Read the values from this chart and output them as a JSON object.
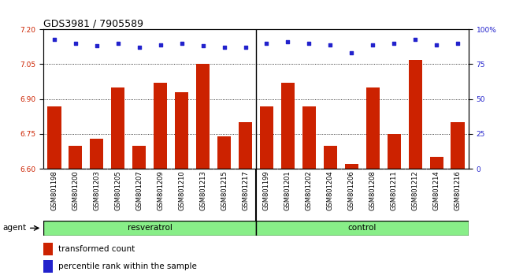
{
  "title": "GDS3981 / 7905589",
  "samples": [
    "GSM801198",
    "GSM801200",
    "GSM801203",
    "GSM801205",
    "GSM801207",
    "GSM801209",
    "GSM801210",
    "GSM801213",
    "GSM801215",
    "GSM801217",
    "GSM801199",
    "GSM801201",
    "GSM801202",
    "GSM801204",
    "GSM801206",
    "GSM801208",
    "GSM801211",
    "GSM801212",
    "GSM801214",
    "GSM801216"
  ],
  "bar_values": [
    6.87,
    6.7,
    6.73,
    6.95,
    6.7,
    6.97,
    6.93,
    7.05,
    6.74,
    6.8,
    6.87,
    6.97,
    6.87,
    6.7,
    6.62,
    6.95,
    6.75,
    7.07,
    6.65,
    6.8
  ],
  "percentile_values": [
    93,
    90,
    88,
    90,
    87,
    89,
    90,
    88,
    87,
    87,
    90,
    91,
    90,
    89,
    83,
    89,
    90,
    93,
    89,
    90
  ],
  "resveratrol_count": 10,
  "control_count": 10,
  "ylim_left": [
    6.6,
    7.2
  ],
  "ylim_right": [
    0,
    100
  ],
  "yticks_left": [
    6.6,
    6.75,
    6.9,
    7.05,
    7.2
  ],
  "yticks_right": [
    0,
    25,
    50,
    75,
    100
  ],
  "bar_color": "#cc2200",
  "dot_color": "#2222cc",
  "bg_color": "#bbbbbb",
  "group_color": "#88ee88",
  "agent_label": "agent",
  "resveratrol_label": "resveratrol",
  "control_label": "control",
  "legend_bar_label": "transformed count",
  "legend_dot_label": "percentile rank within the sample",
  "title_fontsize": 9,
  "tick_fontsize": 6.5,
  "label_fontsize": 7.5
}
